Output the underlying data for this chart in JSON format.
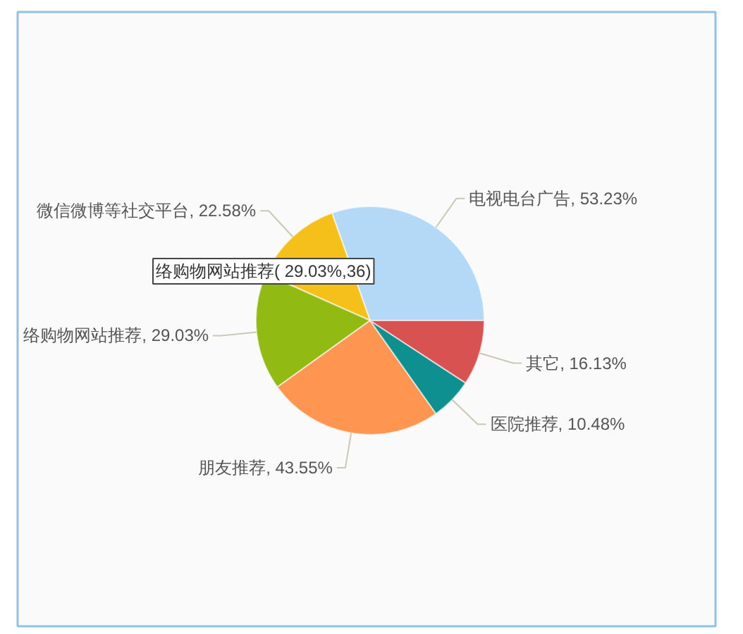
{
  "chart_data": {
    "type": "pie",
    "categories": [
      "电视电台广告",
      "微信微博等社交平台",
      "络购物网站推荐",
      "朋友推荐",
      "医院推荐",
      "其它"
    ],
    "values": [
      53.23,
      22.58,
      29.03,
      43.55,
      10.48,
      16.13
    ],
    "colors": [
      "#b3d9f7",
      "#f5c01a",
      "#91bb12",
      "#fe9550",
      "#0e9090",
      "#d85252"
    ],
    "value_labels": [
      "53.23%",
      "22.58%",
      "29.03%",
      "43.55%",
      "10.48%",
      "16.13%"
    ],
    "annotations": [
      "络购物网站推荐( 29.03%,36)"
    ]
  }
}
